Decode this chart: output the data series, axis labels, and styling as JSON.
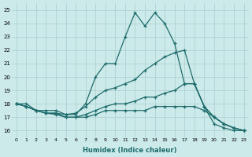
{
  "xlabel": "Humidex (Indice chaleur)",
  "bg_color": "#cceaea",
  "grid_color": "#aacccc",
  "line_color": "#1e6b6b",
  "xlim": [
    -0.5,
    23.5
  ],
  "ylim": [
    15.5,
    25.5
  ],
  "xticks": [
    0,
    1,
    2,
    3,
    4,
    5,
    6,
    7,
    8,
    9,
    10,
    11,
    12,
    13,
    14,
    15,
    16,
    17,
    18,
    19,
    20,
    21,
    22,
    23
  ],
  "yticks": [
    16,
    17,
    18,
    19,
    20,
    21,
    22,
    23,
    24,
    25
  ],
  "series": [
    [
      18.0,
      18.0,
      17.5,
      17.5,
      17.5,
      17.2,
      17.2,
      18.0,
      20.0,
      21.0,
      21.0,
      23.0,
      24.8,
      23.8,
      24.8,
      24.0,
      22.5,
      19.5,
      19.5,
      17.8,
      16.5,
      16.2,
      16.0,
      16.0
    ],
    [
      18.0,
      17.8,
      17.5,
      17.3,
      17.3,
      17.2,
      17.3,
      17.8,
      18.5,
      19.0,
      19.2,
      19.5,
      19.8,
      20.5,
      21.0,
      21.5,
      21.8,
      22.0,
      19.5,
      17.8,
      17.0,
      16.5,
      16.2,
      16.0
    ],
    [
      18.0,
      17.8,
      17.5,
      17.3,
      17.3,
      17.0,
      17.0,
      17.2,
      17.5,
      17.8,
      18.0,
      18.0,
      18.2,
      18.5,
      18.5,
      18.8,
      19.0,
      19.5,
      19.5,
      17.8,
      17.0,
      16.5,
      16.2,
      16.0
    ],
    [
      18.0,
      17.8,
      17.5,
      17.3,
      17.2,
      17.0,
      17.0,
      17.0,
      17.2,
      17.5,
      17.5,
      17.5,
      17.5,
      17.5,
      17.8,
      17.8,
      17.8,
      17.8,
      17.8,
      17.5,
      17.0,
      16.5,
      16.2,
      16.0
    ]
  ]
}
